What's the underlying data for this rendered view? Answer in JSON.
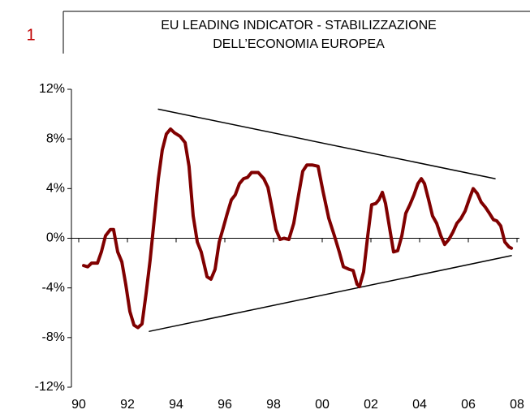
{
  "page_number": "1",
  "chart_data": {
    "type": "line",
    "title": [
      "EU LEADING INDICATOR - STABILIZZAZIONE",
      "DELL’ECONOMIA EUROPEA"
    ],
    "xlim": [
      1989.7,
      2008.1
    ],
    "xticks": [
      {
        "value": 1990,
        "label": "90"
      },
      {
        "value": 1992,
        "label": "92"
      },
      {
        "value": 1994,
        "label": "94"
      },
      {
        "value": 1996,
        "label": "96"
      },
      {
        "value": 1998,
        "label": "98"
      },
      {
        "value": 2000,
        "label": "00"
      },
      {
        "value": 2002,
        "label": "02"
      },
      {
        "value": 2004,
        "label": "04"
      },
      {
        "value": 2006,
        "label": "06"
      },
      {
        "value": 2008,
        "label": "08"
      }
    ],
    "ylim": [
      -12,
      12
    ],
    "yticks": [
      {
        "value": -12,
        "label": "-12%"
      },
      {
        "value": -8,
        "label": "-8%"
      },
      {
        "value": -4,
        "label": "-4%"
      },
      {
        "value": 0,
        "label": "0%"
      },
      {
        "value": 4,
        "label": "4%"
      },
      {
        "value": 8,
        "label": "8%"
      },
      {
        "value": 12,
        "label": "12%"
      }
    ],
    "series": [
      {
        "color": "#800000",
        "x": [
          1990.2,
          1990.37,
          1990.53,
          1990.77,
          1990.93,
          1991.1,
          1991.3,
          1991.43,
          1991.6,
          1991.77,
          1991.93,
          1992.1,
          1992.27,
          1992.43,
          1992.6,
          1992.77,
          1992.93,
          1993.1,
          1993.27,
          1993.43,
          1993.6,
          1993.77,
          1993.93,
          1994.17,
          1994.37,
          1994.53,
          1994.7,
          1994.87,
          1995.03,
          1995.27,
          1995.43,
          1995.6,
          1995.77,
          1995.93,
          1996.1,
          1996.27,
          1996.43,
          1996.6,
          1996.77,
          1996.93,
          1997.1,
          1997.37,
          1997.6,
          1997.77,
          1997.93,
          1998.1,
          1998.27,
          1998.43,
          1998.63,
          1998.83,
          1999.03,
          1999.2,
          1999.37,
          1999.6,
          1999.83,
          2000.03,
          2000.27,
          2000.5,
          2000.7,
          2000.87,
          2001.1,
          2001.27,
          2001.43,
          2001.53,
          2001.7,
          2001.87,
          2002.03,
          2002.2,
          2002.33,
          2002.47,
          2002.6,
          2002.77,
          2002.93,
          2003.1,
          2003.27,
          2003.43,
          2003.6,
          2003.77,
          2003.93,
          2004.07,
          2004.2,
          2004.37,
          2004.53,
          2004.7,
          2004.87,
          2005.03,
          2005.2,
          2005.37,
          2005.53,
          2005.7,
          2005.87,
          2006.03,
          2006.2,
          2006.37,
          2006.53,
          2006.7,
          2006.87,
          2007.03,
          2007.17,
          2007.33,
          2007.5,
          2007.67,
          2007.77
        ],
        "values": [
          -2.2,
          -2.3,
          -2.0,
          -2.0,
          -1.1,
          0.2,
          0.7,
          0.7,
          -1.1,
          -1.9,
          -3.7,
          -5.9,
          -7.0,
          -7.2,
          -6.9,
          -4.4,
          -1.8,
          1.5,
          4.8,
          7.1,
          8.4,
          8.8,
          8.5,
          8.2,
          7.7,
          5.8,
          1.8,
          -0.3,
          -1.1,
          -3.1,
          -3.3,
          -2.5,
          -0.3,
          0.8,
          2.0,
          3.1,
          3.5,
          4.4,
          4.8,
          4.9,
          5.3,
          5.3,
          4.8,
          4.1,
          2.5,
          0.7,
          -0.1,
          0,
          -0.1,
          1.2,
          3.5,
          5.4,
          5.9,
          5.9,
          5.8,
          3.8,
          1.6,
          0.2,
          -1.1,
          -2.3,
          -2.5,
          -2.6,
          -3.7,
          -3.9,
          -2.7,
          0.2,
          2.7,
          2.8,
          3.1,
          3.7,
          2.8,
          0.8,
          -1.1,
          -1.0,
          0.2,
          2.0,
          2.7,
          3.5,
          4.4,
          4.8,
          4.4,
          3.1,
          1.8,
          1.2,
          0.2,
          -0.5,
          -0.1,
          0.5,
          1.2,
          1.6,
          2.2,
          3.1,
          4.0,
          3.6,
          2.9,
          2.5,
          2.0,
          1.5,
          1.4,
          1.0,
          -0.3,
          -0.7,
          -0.8
        ]
      }
    ],
    "trend_lines": [
      {
        "color": "#000000",
        "x": [
          1993.27,
          2007.1
        ],
        "values": [
          10.4,
          4.8
        ]
      },
      {
        "color": "#000000",
        "x": [
          1992.9,
          2007.77
        ],
        "values": [
          -7.5,
          -1.4
        ]
      }
    ]
  }
}
